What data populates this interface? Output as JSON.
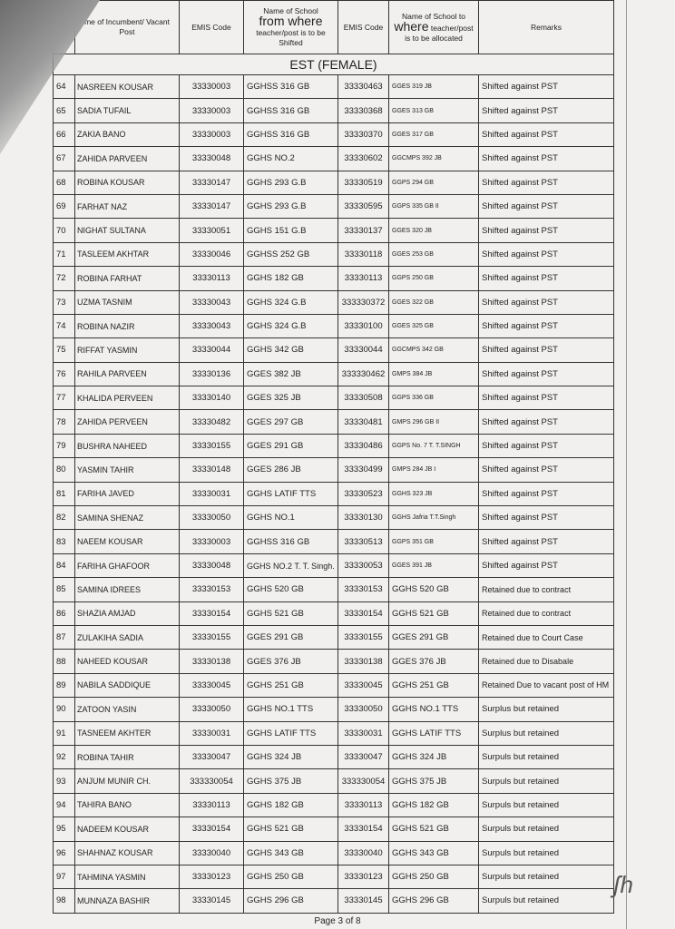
{
  "headers": {
    "name": "me of Incumbent/ Vacant Post",
    "emis1": "EMIS Code",
    "from_a": "Name of School",
    "from_b": "from where",
    "from_c": "teacher/post is to be Shifted",
    "emis2": "EMIS Code",
    "to_a": "Name of School to",
    "to_b": "where",
    "to_c": "teacher/post is to be allocated",
    "remarks": "Remarks"
  },
  "section": "EST (FEMALE)",
  "rows": [
    [
      "64",
      "NASREEN KOUSAR",
      "33330003",
      "GGHSS 316 GB",
      "33330463",
      "GGES 319 JB",
      "Shifted against PST"
    ],
    [
      "65",
      "SADIA TUFAIL",
      "33330003",
      "GGHSS 316 GB",
      "33330368",
      "GGES 313 GB",
      "Shifted against PST"
    ],
    [
      "66",
      "ZAKIA BANO",
      "33330003",
      "GGHSS 316 GB",
      "33330370",
      "GGES 317 GB",
      "Shifted against PST"
    ],
    [
      "67",
      "ZAHIDA PARVEEN",
      "33330048",
      "GGHS NO.2",
      "33330602",
      "GGCMPS 392 JB",
      "Shifted against PST"
    ],
    [
      "68",
      "ROBINA KOUSAR",
      "33330147",
      "GGHS 293 G.B",
      "33330519",
      "GGPS 294 GB",
      "Shifted against PST"
    ],
    [
      "69",
      "FARHAT NAZ",
      "33330147",
      "GGHS 293 G.B",
      "33330595",
      "GGPS 335 GB II",
      "Shifted against PST"
    ],
    [
      "70",
      "NIGHAT SULTANA",
      "33330051",
      "GGHS 151 G.B",
      "33330137",
      "GGES 320 JB",
      "Shifted against PST"
    ],
    [
      "71",
      "TASLEEM AKHTAR",
      "33330046",
      "GGHSS 252 GB",
      "33330118",
      "GGES 253 GB",
      "Shifted against PST"
    ],
    [
      "72",
      "ROBINA FARHAT",
      "33330113",
      "GGHS 182 GB",
      "33330113",
      "GGPS 250 GB",
      "Shifted against PST"
    ],
    [
      "73",
      "UZMA TASNIM",
      "33330043",
      "GGHS 324 G.B",
      "333330372",
      "GGES 322 GB",
      "Shifted against PST"
    ],
    [
      "74",
      "ROBINA NAZIR",
      "33330043",
      "GGHS 324 G.B",
      "33330100",
      "GGES 325 GB",
      "Shifted against PST"
    ],
    [
      "75",
      "RIFFAT YASMIN",
      "33330044",
      "GGHS 342 GB",
      "33330044",
      "GGCMPS 342 GB",
      "Shifted against PST"
    ],
    [
      "76",
      "RAHILA PARVEEN",
      "33330136",
      "GGES 382 JB",
      "333330462",
      "GMPS 384 JB",
      "Shifted against PST"
    ],
    [
      "77",
      "KHALIDA PERVEEN",
      "33330140",
      "GGES 325 JB",
      "33330508",
      "GGPS 336 GB",
      "Shifted against PST"
    ],
    [
      "78",
      "ZAHIDA PERVEEN",
      "33330482",
      "GGES 297 GB",
      "33330481",
      "GMPS 296 GB II",
      "Shifted against PST"
    ],
    [
      "79",
      "BUSHRA NAHEED",
      "33330155",
      "GGES 291 GB",
      "33330486",
      "GGPS No. 7 T. T.SINGH",
      "Shifted against PST"
    ],
    [
      "80",
      "YASMIN TAHIR",
      "33330148",
      "GGES 286 JB",
      "33330499",
      "GMPS 284 JB I",
      "Shifted against PST"
    ],
    [
      "81",
      "FARIHA JAVED",
      "33330031",
      "GGHS LATIF TTS",
      "33330523",
      "GGHS 323 JB",
      "Shifted against PST"
    ],
    [
      "82",
      "SAMINA SHENAZ",
      "33330050",
      "GGHS NO.1",
      "33330130",
      "GGHS Jafria T.T.Singh",
      "Shifted against PST"
    ],
    [
      "83",
      "NAEEM KOUSAR",
      "33330003",
      "GGHSS 316 GB",
      "33330513",
      "GGPS 351 GB",
      "Shifted against PST"
    ],
    [
      "84",
      "FARIHA GHAFOOR",
      "33330048",
      "GGHS NO.2 T. T. Singh.",
      "33330053",
      "GGES 391 JB",
      "Shifted against PST"
    ],
    [
      "85",
      "SAMINA IDREES",
      "33330153",
      "GGHS 520 GB",
      "33330153",
      "GGHS 520 GB",
      "Retained due to contract"
    ],
    [
      "86",
      "SHAZIA AMJAD",
      "33330154",
      "GGHS 521 GB",
      "33330154",
      "GGHS 521 GB",
      "Retained due to contract"
    ],
    [
      "87",
      "ZULAKIHA SADIA",
      "33330155",
      "GGES 291 GB",
      "33330155",
      "GGES 291 GB",
      "Retained due to Court Case"
    ],
    [
      "88",
      "NAHEED KOUSAR",
      "33330138",
      "GGES 376 JB",
      "33330138",
      "GGES 376 JB",
      "Retained due to Disabale"
    ],
    [
      "89",
      "NABILA SADDIQUE",
      "33330045",
      "GGHS 251 GB",
      "33330045",
      "GGHS 251 GB",
      "Retained Due to vacant post of HM"
    ],
    [
      "90",
      "ZATOON YASIN",
      "33330050",
      "GGHS NO.1 TTS",
      "33330050",
      "GGHS NO.1 TTS",
      "Surplus but retained"
    ],
    [
      "91",
      "TASNEEM AKHTER",
      "33330031",
      "GGHS LATIF TTS",
      "33330031",
      "GGHS LATIF TTS",
      "Surplus but retained"
    ],
    [
      "92",
      "ROBINA TAHIR",
      "33330047",
      "GGHS 324 JB",
      "33330047",
      "GGHS 324 JB",
      "Surpuls but retained"
    ],
    [
      "93",
      "ANJUM MUNIR CH.",
      "333330054",
      "GGHS 375 JB",
      "333330054",
      "GGHS 375 JB",
      "Surpuls but retained"
    ],
    [
      "94",
      "TAHIRA BANO",
      "33330113",
      "GGHS 182 GB",
      "33330113",
      "GGHS 182 GB",
      "Surpuls but retained"
    ],
    [
      "95",
      "NADEEM KOUSAR",
      "33330154",
      "GGHS 521 GB",
      "33330154",
      "GGHS 521 GB",
      "Surpuls but retained"
    ],
    [
      "96",
      "SHAHNAZ KOUSAR",
      "33330040",
      "GGHS 343 GB",
      "33330040",
      "GGHS 343 GB",
      "Surpuls but retained"
    ],
    [
      "97",
      "TAHMINA YASMIN",
      "33330123",
      "GGHS 250 GB",
      "33330123",
      "GGHS 250 GB",
      "Surpuls but retained"
    ],
    [
      "98",
      "MUNNAZA BASHIR",
      "33330145",
      "GGHS 296 GB",
      "33330145",
      "GGHS 296 GB",
      "Surpuls but retained"
    ]
  ],
  "footer": "Page 3 of 8"
}
